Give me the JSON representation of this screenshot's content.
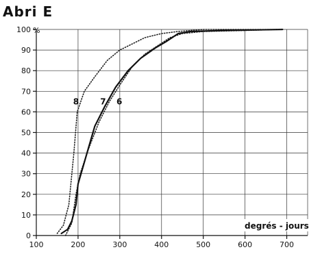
{
  "chart_data": {
    "type": "line",
    "title": "Abri   E",
    "xlabel": "degrés - jours",
    "ylabel": "%",
    "xlim": [
      100,
      750
    ],
    "ylim": [
      0,
      100
    ],
    "x_ticks": [
      100,
      200,
      300,
      400,
      500,
      600,
      700
    ],
    "y_ticks": [
      0,
      10,
      20,
      30,
      40,
      50,
      60,
      70,
      80,
      90,
      100
    ],
    "grid": true,
    "series": [
      {
        "name": "6",
        "style": "dotted",
        "color": "#222222",
        "points": [
          [
            170,
            0
          ],
          [
            185,
            6
          ],
          [
            195,
            20
          ],
          [
            205,
            30
          ],
          [
            225,
            42
          ],
          [
            250,
            55
          ],
          [
            275,
            65
          ],
          [
            300,
            73
          ],
          [
            330,
            82
          ],
          [
            360,
            88
          ],
          [
            390,
            92
          ],
          [
            420,
            96
          ],
          [
            450,
            98
          ],
          [
            500,
            99
          ],
          [
            600,
            99.5
          ],
          [
            680,
            100
          ]
        ]
      },
      {
        "name": "7",
        "style": "solid",
        "color": "#111111",
        "points": [
          [
            160,
            1
          ],
          [
            175,
            3
          ],
          [
            185,
            7
          ],
          [
            195,
            15
          ],
          [
            200,
            25
          ],
          [
            220,
            39
          ],
          [
            240,
            53
          ],
          [
            265,
            63
          ],
          [
            290,
            72
          ],
          [
            320,
            80
          ],
          [
            350,
            86
          ],
          [
            385,
            91
          ],
          [
            410,
            94
          ],
          [
            440,
            98
          ],
          [
            470,
            99
          ],
          [
            550,
            99.5
          ],
          [
            690,
            100
          ]
        ]
      },
      {
        "name": "8",
        "style": "dotted",
        "color": "#222222",
        "points": [
          [
            150,
            1
          ],
          [
            165,
            5
          ],
          [
            178,
            15
          ],
          [
            190,
            40
          ],
          [
            198,
            60
          ],
          [
            215,
            70
          ],
          [
            240,
            77
          ],
          [
            270,
            85
          ],
          [
            300,
            90
          ],
          [
            330,
            93
          ],
          [
            360,
            96
          ],
          [
            400,
            98
          ],
          [
            440,
            99
          ],
          [
            500,
            100
          ],
          [
            690,
            100
          ]
        ]
      }
    ],
    "series_labels": [
      {
        "text": "8",
        "x": 195,
        "y": 65
      },
      {
        "text": "7",
        "x": 260,
        "y": 65
      },
      {
        "text": "6",
        "x": 299,
        "y": 65
      }
    ]
  }
}
